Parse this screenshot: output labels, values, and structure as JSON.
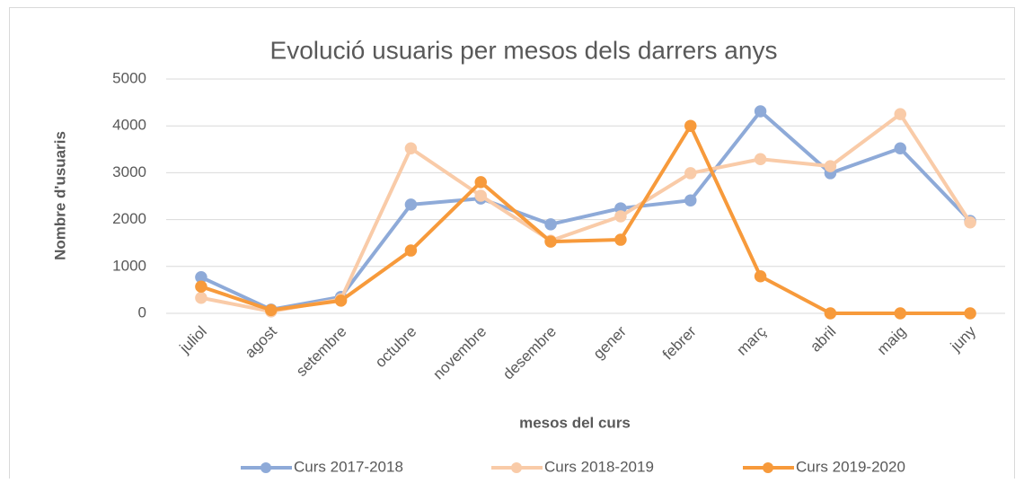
{
  "chart_data": {
    "type": "line",
    "title": "Evolució usuaris per mesos dels darrers anys",
    "x_label": "mesos del curs",
    "y_label": "Nombre d'usuaris",
    "categories": [
      "juliol",
      "agost",
      "setembre",
      "octubre",
      "novembre",
      "desembre",
      "gener",
      "febrer",
      "març",
      "abril",
      "maig",
      "juny"
    ],
    "series": [
      {
        "name": "Curs 2017-2018",
        "color": "#8eaad8",
        "values": [
          770,
          80,
          350,
          2320,
          2450,
          1900,
          2240,
          2410,
          4310,
          2990,
          3520,
          1970
        ]
      },
      {
        "name": "Curs 2018-2019",
        "color": "#f9cba8",
        "values": [
          330,
          40,
          300,
          3520,
          2510,
          1550,
          2070,
          2990,
          3290,
          3140,
          4250,
          1940
        ]
      },
      {
        "name": "Curs 2019-2020",
        "color": "#f79a3b",
        "values": [
          570,
          70,
          270,
          1340,
          2800,
          1530,
          1570,
          4000,
          790,
          0,
          0,
          0
        ]
      }
    ],
    "ylim": [
      0,
      5000
    ],
    "yticks": [
      0,
      1000,
      2000,
      3000,
      4000,
      5000
    ],
    "grid": true,
    "legend": "bottom"
  }
}
